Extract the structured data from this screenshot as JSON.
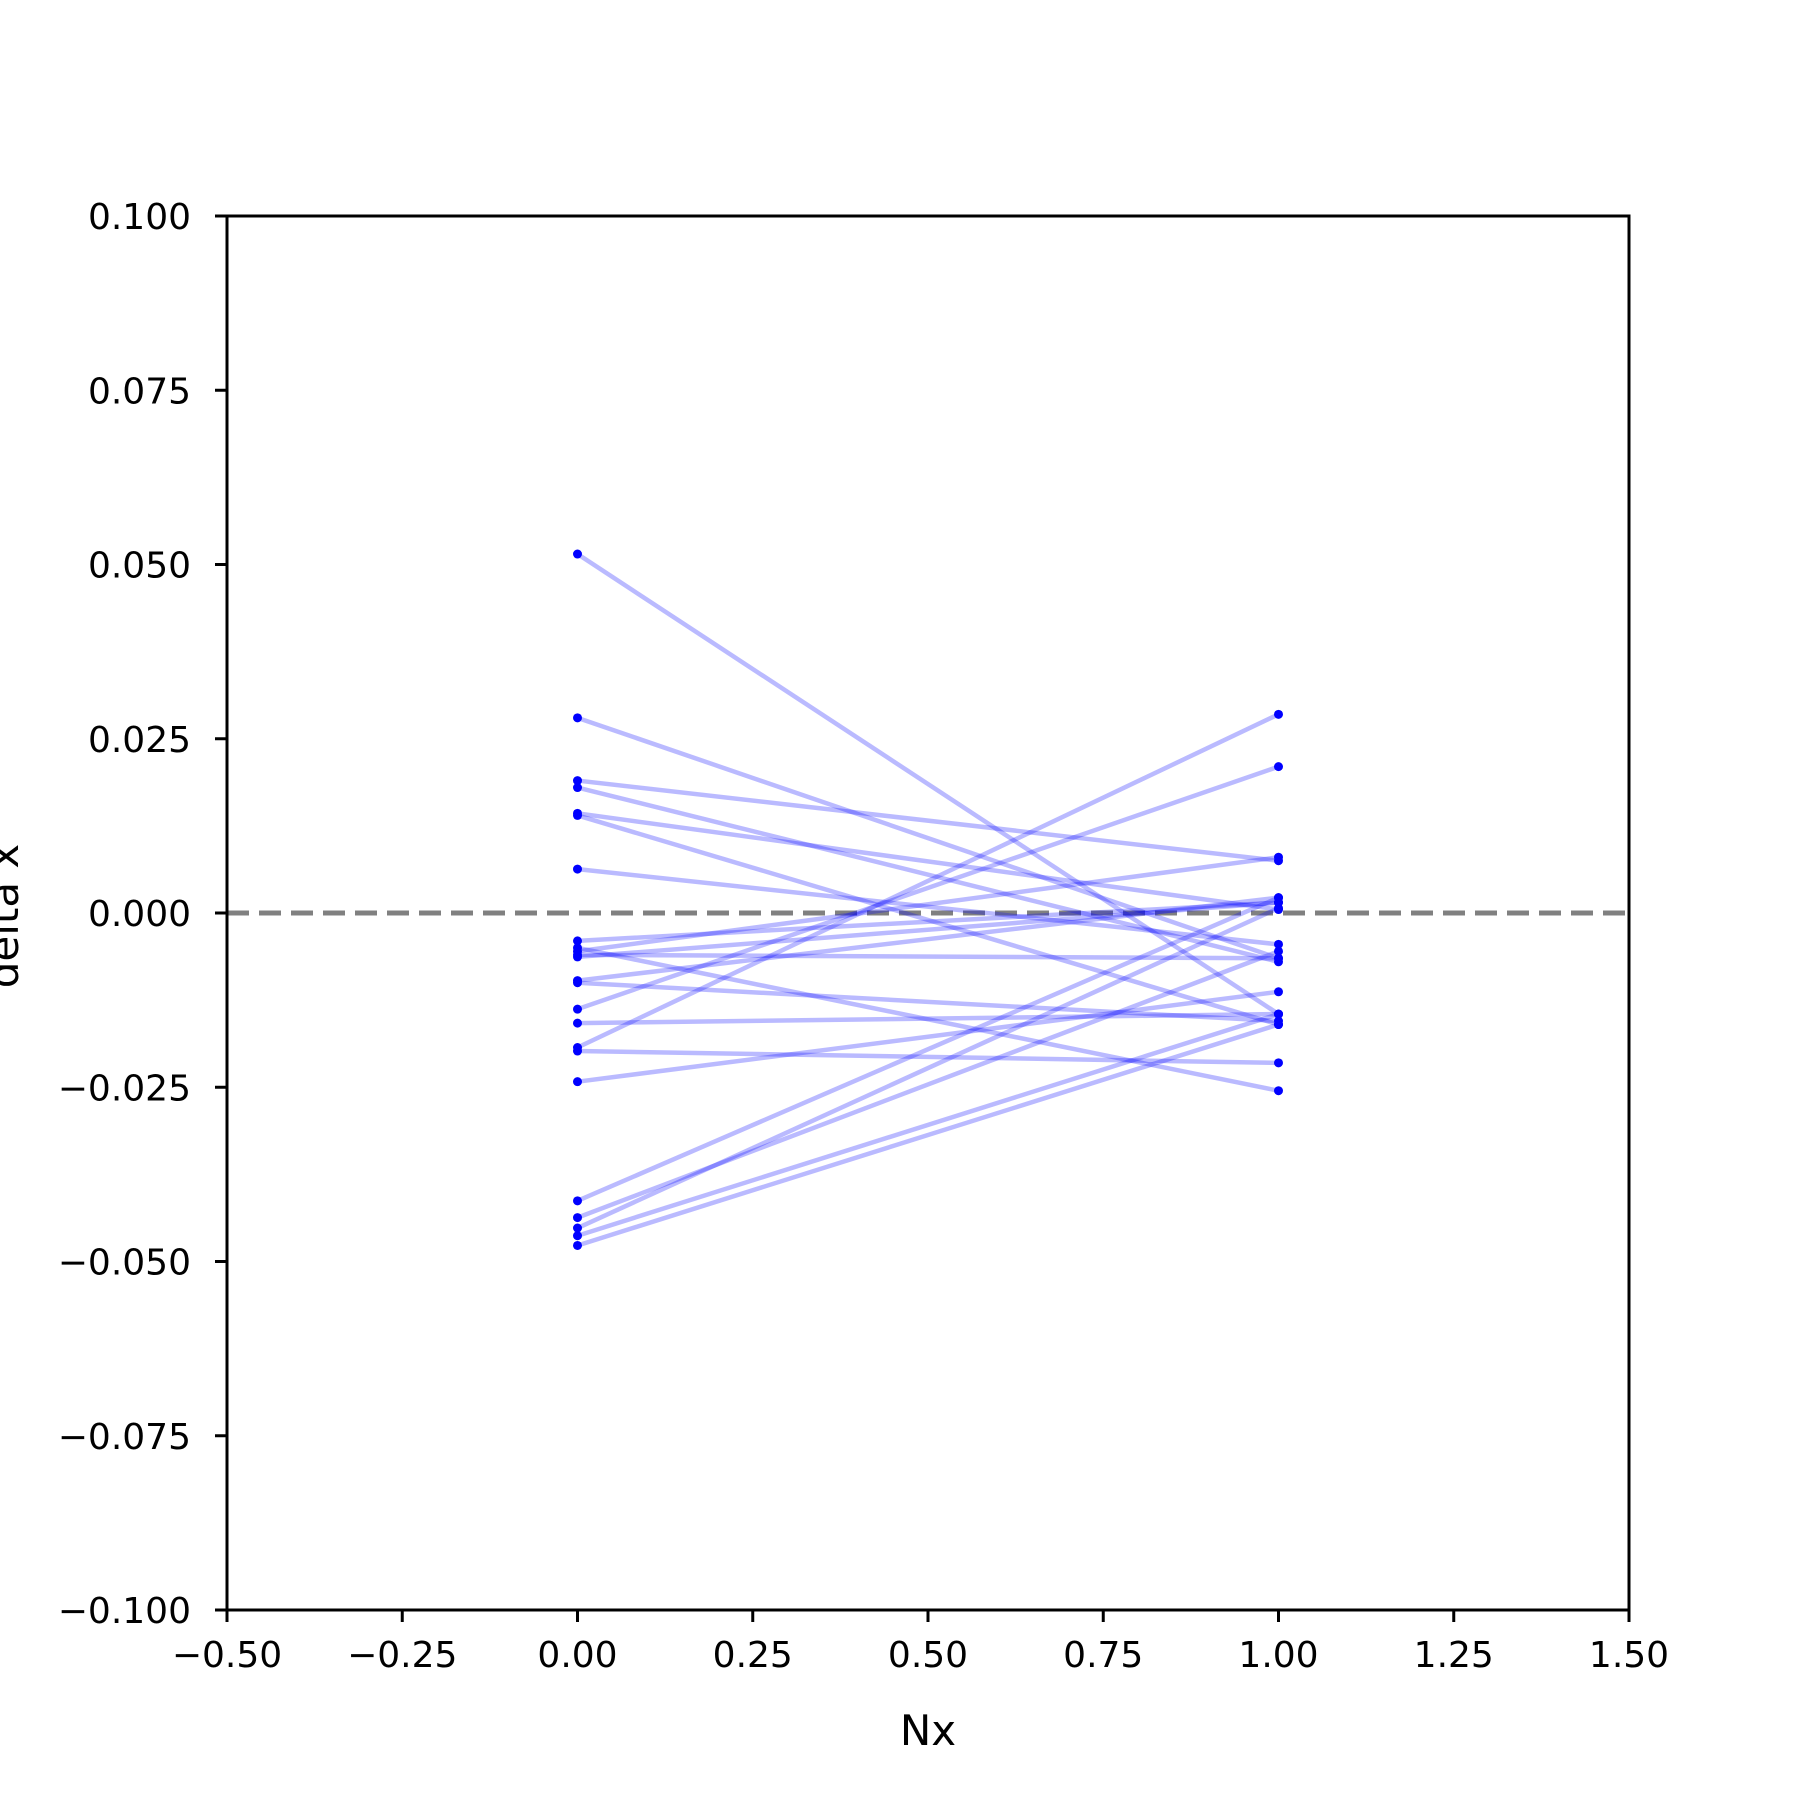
{
  "chart_data": {
    "type": "line",
    "xlabel": "Nx",
    "ylabel": "delta x",
    "xlim": [
      -0.5,
      1.5
    ],
    "ylim": [
      -0.1,
      0.1
    ],
    "x_ticks": [
      "−0.50",
      "−0.25",
      "0.00",
      "0.25",
      "0.50",
      "0.75",
      "1.00",
      "1.25",
      "1.50"
    ],
    "y_ticks": [
      "−0.100",
      "−0.075",
      "−0.050",
      "−0.025",
      "0.000",
      "0.025",
      "0.050",
      "0.075",
      "0.100"
    ],
    "x_tick_values": [
      -0.5,
      -0.25,
      0,
      0.25,
      0.5,
      0.75,
      1.0,
      1.25,
      1.5
    ],
    "y_tick_values": [
      -0.1,
      -0.075,
      -0.05,
      -0.025,
      0,
      0.025,
      0.05,
      0.075,
      0.1
    ],
    "reference_line": {
      "y": 0.0,
      "style": "dashed",
      "color": "#808080"
    },
    "grid": false,
    "line_color": "#0000ff",
    "line_opacity": 0.27,
    "point_color": "#0000ff",
    "series": [
      {
        "x": [
          0,
          1
        ],
        "y": [
          0.0515,
          -0.0145
        ]
      },
      {
        "x": [
          0,
          1
        ],
        "y": [
          0.028,
          -0.0065
        ]
      },
      {
        "x": [
          0,
          1
        ],
        "y": [
          0.019,
          0.0075
        ]
      },
      {
        "x": [
          0,
          1
        ],
        "y": [
          0.018,
          -0.007
        ]
      },
      {
        "x": [
          0,
          1
        ],
        "y": [
          0.0143,
          0.0005
        ]
      },
      {
        "x": [
          0,
          1
        ],
        "y": [
          0.014,
          -0.016
        ]
      },
      {
        "x": [
          0,
          1
        ],
        "y": [
          0.0063,
          -0.0045
        ]
      },
      {
        "x": [
          0,
          1
        ],
        "y": [
          -0.004,
          0.0015
        ]
      },
      {
        "x": [
          0,
          1
        ],
        "y": [
          -0.005,
          -0.0255
        ]
      },
      {
        "x": [
          0,
          1
        ],
        "y": [
          -0.0055,
          0.008
        ]
      },
      {
        "x": [
          0,
          1
        ],
        "y": [
          -0.006,
          -0.0065
        ]
      },
      {
        "x": [
          0,
          1
        ],
        "y": [
          -0.0063,
          0.0015
        ]
      },
      {
        "x": [
          0,
          1
        ],
        "y": [
          -0.0097,
          0.0022
        ]
      },
      {
        "x": [
          0,
          1
        ],
        "y": [
          -0.01,
          -0.0155
        ]
      },
      {
        "x": [
          0,
          1
        ],
        "y": [
          -0.0138,
          0.021
        ]
      },
      {
        "x": [
          0,
          1
        ],
        "y": [
          -0.0158,
          -0.0145
        ]
      },
      {
        "x": [
          0,
          1
        ],
        "y": [
          -0.0193,
          0.0285
        ]
      },
      {
        "x": [
          0,
          1
        ],
        "y": [
          -0.0198,
          -0.0215
        ]
      },
      {
        "x": [
          0,
          1
        ],
        "y": [
          -0.0242,
          -0.0113
        ]
      },
      {
        "x": [
          0,
          1
        ],
        "y": [
          -0.0413,
          0.0022
        ]
      },
      {
        "x": [
          0,
          1
        ],
        "y": [
          -0.0437,
          -0.0055
        ]
      },
      {
        "x": [
          0,
          1
        ],
        "y": [
          -0.0452,
          0.0007
        ]
      },
      {
        "x": [
          0,
          1
        ],
        "y": [
          -0.0463,
          -0.0145
        ]
      },
      {
        "x": [
          0,
          1
        ],
        "y": [
          -0.0477,
          -0.016
        ]
      }
    ]
  }
}
